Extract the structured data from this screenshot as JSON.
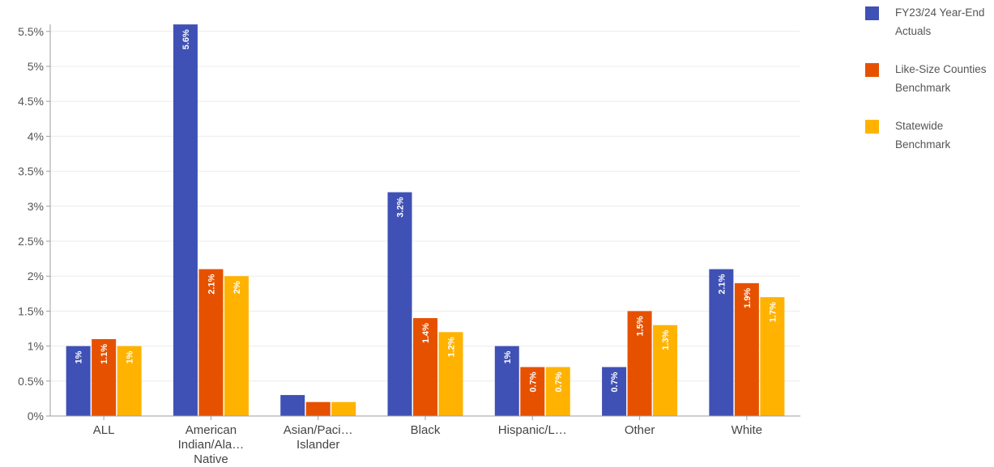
{
  "chart_data": {
    "type": "bar",
    "categories": [
      [
        "ALL"
      ],
      [
        "American",
        "Indian/Ala…",
        "Native"
      ],
      [
        "Asian/Paci…",
        "Islander"
      ],
      [
        "Black"
      ],
      [
        "Hispanic/L…"
      ],
      [
        "Other"
      ],
      [
        "White"
      ]
    ],
    "series": [
      {
        "name": "FY23/24 Year-End Actuals",
        "color": "#3f51b5",
        "values": [
          1.0,
          5.6,
          0.3,
          3.2,
          1.0,
          0.7,
          2.1
        ],
        "labels": [
          "1%",
          "5.6%",
          "",
          "3.2%",
          "1%",
          "0.7%",
          "2.1%"
        ]
      },
      {
        "name": "Like-Size Counties Benchmark",
        "color": "#e65100",
        "values": [
          1.1,
          2.1,
          0.2,
          1.4,
          0.7,
          1.5,
          1.9
        ],
        "labels": [
          "1.1%",
          "2.1%",
          "",
          "1.4%",
          "0.7%",
          "1.5%",
          "1.9%"
        ]
      },
      {
        "name": "Statewide Benchmark",
        "color": "#ffb300",
        "values": [
          1.0,
          2.0,
          0.2,
          1.2,
          0.7,
          1.3,
          1.7
        ],
        "labels": [
          "1%",
          "2%",
          "",
          "1.2%",
          "0.7%",
          "1.3%",
          "1.7%"
        ]
      }
    ],
    "legend": [
      [
        "FY23/24 Year-End",
        "Actuals"
      ],
      [
        "Like-Size Counties",
        "Benchmark"
      ],
      [
        "Statewide",
        "Benchmark"
      ]
    ],
    "yticks": [
      "0%",
      "0.5%",
      "1%",
      "1.5%",
      "2%",
      "2.5%",
      "3%",
      "3.5%",
      "4%",
      "4.5%",
      "5%",
      "5.5%"
    ],
    "ylim": [
      0,
      5.6
    ],
    "grid": true,
    "legend_position": "right"
  }
}
